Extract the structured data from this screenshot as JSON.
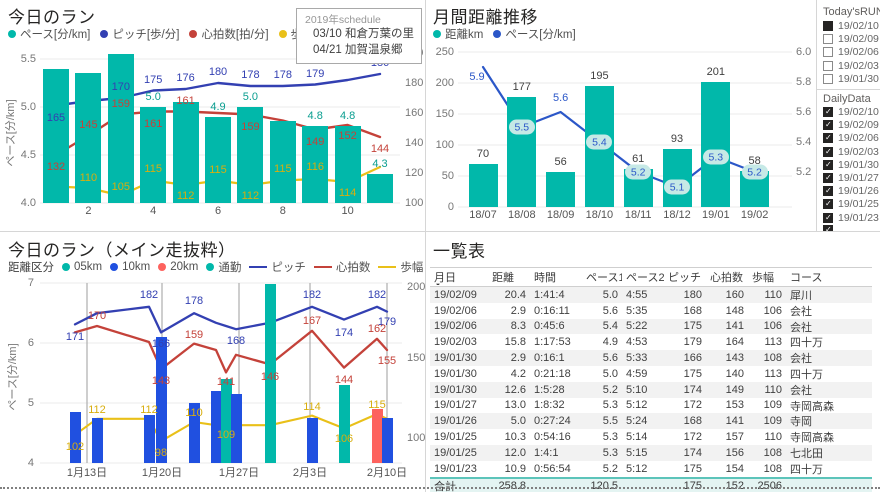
{
  "colors": {
    "teal": "#01B8AA",
    "blue": "#2050E0",
    "salmon": "#FD625E",
    "pitch": "#3340B2",
    "heart": "#C4423A",
    "stride": "#E9C019",
    "pace_label": "#0A9E90",
    "dark_label": "#3C3C3C",
    "chip_bg": "#C6E9E6",
    "chip_text": "#2B57C8"
  },
  "panels": {
    "today_run": {
      "title": "今日のラン",
      "legend": [
        {
          "label": "ペース[分/km]",
          "color_key": "teal"
        },
        {
          "label": "ピッチ[歩/分]",
          "color_key": "pitch"
        },
        {
          "label": "心拍数[拍/分]",
          "color_key": "heart"
        },
        {
          "label": "歩幅[cm]",
          "color_key": "stride"
        }
      ],
      "y_left_title": "ペース[分/km]",
      "y_left_ticks": [
        "5.5",
        "5.0",
        "4.5",
        "4.0"
      ],
      "y_right_ticks": [
        "200",
        "180",
        "160",
        "140",
        "120",
        "100"
      ],
      "x_ticks": [
        "2",
        "4",
        "6",
        "8",
        "10"
      ],
      "schedule_box": {
        "title": "2019年schedule",
        "lines": [
          "03/10 和倉万葉の里",
          "04/21 加賀温泉郷"
        ]
      }
    },
    "monthly": {
      "title": "月間距離推移",
      "legend": [
        {
          "label": "距離km",
          "color_key": "teal"
        },
        {
          "label": "ペース[分/km]",
          "color_key": "chip_text"
        }
      ],
      "y_left_ticks": [
        "250",
        "200",
        "150",
        "100",
        "50",
        "0"
      ],
      "y_right_ticks": [
        "6.0",
        "5.8",
        "5.6",
        "5.4",
        "5.2"
      ]
    },
    "slicer_today": {
      "title": "Today'sRUN",
      "items": [
        {
          "label": "19/02/10",
          "state": "selected"
        },
        {
          "label": "19/02/09",
          "state": "unchecked"
        },
        {
          "label": "19/02/06",
          "state": "unchecked"
        },
        {
          "label": "19/02/03",
          "state": "unchecked"
        },
        {
          "label": "19/01/30",
          "state": "unchecked"
        }
      ]
    },
    "slicer_daily": {
      "title": "DailyData",
      "items": [
        {
          "label": "19/02/10",
          "state": "checked"
        },
        {
          "label": "19/02/09",
          "state": "checked"
        },
        {
          "label": "19/02/06",
          "state": "checked"
        },
        {
          "label": "19/02/03",
          "state": "checked"
        },
        {
          "label": "19/01/30",
          "state": "checked"
        },
        {
          "label": "19/01/27",
          "state": "checked"
        },
        {
          "label": "19/01/26",
          "state": "checked"
        },
        {
          "label": "19/01/25",
          "state": "checked"
        },
        {
          "label": "19/01/23",
          "state": "checked"
        },
        {
          "label": "",
          "state": "checked"
        }
      ]
    },
    "main_run": {
      "title": "今日のラン（メイン走抜粋）",
      "legend_title": "距離区分",
      "legend_dots": [
        {
          "label": "05km",
          "color_key": "teal"
        },
        {
          "label": "10km",
          "color_key": "blue"
        },
        {
          "label": "20km",
          "color_key": "salmon"
        },
        {
          "label": "通勤",
          "color_key": "teal"
        }
      ],
      "legend_lines": [
        {
          "label": "ピッチ",
          "color_key": "pitch"
        },
        {
          "label": "心拍数",
          "color_key": "heart"
        },
        {
          "label": "歩幅",
          "color_key": "stride"
        }
      ],
      "y_left_title": "ペース[分/km]",
      "y_left_ticks": [
        "7",
        "6",
        "5",
        "4"
      ],
      "y_right_ticks": [
        "200",
        "150",
        "100"
      ],
      "x_labels": [
        "1月13日",
        "1月20日",
        "1月27日",
        "2月3日",
        "2月10日"
      ]
    },
    "table": {
      "title": "一覧表",
      "sort_arrow": "▼",
      "columns": [
        "月日",
        "距離",
        "時間",
        "ペース1",
        "ペース2",
        "ピッチ",
        "心拍数",
        "歩幅",
        "コース"
      ],
      "rows": [
        [
          "19/02/09",
          "20.4",
          "1:41:4",
          "5.0",
          "4:55",
          "180",
          "160",
          "110",
          "犀川"
        ],
        [
          "19/02/06",
          "2.9",
          "0:16:11",
          "5.6",
          "5:35",
          "168",
          "148",
          "106",
          "会社"
        ],
        [
          "19/02/06",
          "8.3",
          "0:45:6",
          "5.4",
          "5:22",
          "175",
          "141",
          "106",
          "会社"
        ],
        [
          "19/02/03",
          "15.8",
          "1:17:53",
          "4.9",
          "4:53",
          "179",
          "164",
          "113",
          "四十万"
        ],
        [
          "19/01/30",
          "2.9",
          "0:16:1",
          "5.6",
          "5:33",
          "166",
          "143",
          "108",
          "会社"
        ],
        [
          "19/01/30",
          "4.2",
          "0:21:18",
          "5.0",
          "4:59",
          "175",
          "140",
          "113",
          "四十万"
        ],
        [
          "19/01/30",
          "12.6",
          "1:5:28",
          "5.2",
          "5:10",
          "174",
          "149",
          "110",
          "会社"
        ],
        [
          "19/01/27",
          "13.0",
          "1:8:32",
          "5.3",
          "5:12",
          "172",
          "153",
          "109",
          "寺岡高森"
        ],
        [
          "19/01/26",
          "5.0",
          "0:27:24",
          "5.5",
          "5:24",
          "168",
          "141",
          "109",
          "寺岡"
        ],
        [
          "19/01/25",
          "10.3",
          "0:54:16",
          "5.3",
          "5:14",
          "172",
          "157",
          "110",
          "寺岡高森"
        ],
        [
          "19/01/25",
          "12.0",
          "1:4:1",
          "5.3",
          "5:15",
          "174",
          "156",
          "108",
          "七北田"
        ],
        [
          "19/01/23",
          "10.9",
          "0:56:54",
          "5.2",
          "5:12",
          "175",
          "154",
          "108",
          "四十万"
        ]
      ],
      "total_row": [
        "合計",
        "258.8",
        "",
        "120.5",
        "",
        "175",
        "152",
        "2506",
        ""
      ]
    }
  },
  "chart_data": [
    {
      "type": "bar+line",
      "title": "今日のラン",
      "ylim_left": [
        4.0,
        5.5
      ],
      "ylim_right": [
        100,
        200
      ],
      "x_ticks_shown": [
        "2",
        "4",
        "6",
        "8",
        "10"
      ],
      "bars": {
        "name": "ペース[分/km]",
        "values": [
          5.4,
          5.35,
          5.55,
          5.0,
          5.05,
          4.9,
          5.0,
          4.85,
          4.8,
          4.8,
          4.3
        ],
        "labels": [
          null,
          null,
          null,
          "5.0",
          null,
          "4.9",
          "5.0",
          null,
          "4.8",
          "4.8",
          "4.3"
        ]
      },
      "series": [
        {
          "name": "ピッチ[歩/分]",
          "key": "pitch",
          "values": [
            165,
            168,
            170,
            175,
            176,
            180,
            178,
            178,
            179,
            182,
            186
          ],
          "labels": [
            "165",
            null,
            "170",
            "175",
            "176",
            "180",
            "178",
            "178",
            "179",
            null,
            "186"
          ]
        },
        {
          "name": "心拍数[拍/分]",
          "key": "heart",
          "values": [
            132,
            145,
            159,
            161,
            161,
            160,
            159,
            155,
            149,
            152,
            144
          ],
          "labels": [
            "132",
            "145",
            "159",
            "161",
            "161",
            null,
            "159",
            null,
            "149",
            "152",
            "144"
          ]
        },
        {
          "name": "歩幅[cm]",
          "key": "stride",
          "values": [
            111,
            110,
            105,
            115,
            112,
            115,
            112,
            115,
            116,
            114,
            124
          ],
          "labels": [
            null,
            "110",
            "105",
            "115",
            "112",
            "115",
            "112",
            "115",
            "116",
            "114",
            null
          ]
        }
      ]
    },
    {
      "type": "bar+line",
      "title": "月間距離推移",
      "categories": [
        "18/07",
        "18/08",
        "18/09",
        "18/10",
        "18/11",
        "18/12",
        "19/01",
        "19/02"
      ],
      "ylim_left": [
        0,
        250
      ],
      "ylim_right": [
        5.2,
        6.0
      ],
      "bars": {
        "name": "距離km",
        "values": [
          70,
          177,
          56,
          195,
          61,
          93,
          201,
          58
        ],
        "labels": [
          "70",
          "177",
          "56",
          "195",
          "61",
          "93",
          "201",
          "58"
        ]
      },
      "series": [
        {
          "name": "ペース[分/km]",
          "key": "pace",
          "values": [
            5.9,
            5.5,
            5.6,
            5.4,
            5.2,
            5.1,
            5.3,
            5.2
          ],
          "labels": [
            "5.9",
            "5.5",
            "5.6",
            "5.4",
            "5.2",
            "5.1",
            "5.3",
            "5.2"
          ],
          "chip": [
            false,
            true,
            false,
            true,
            true,
            true,
            true,
            true
          ]
        }
      ]
    },
    {
      "type": "bar+line",
      "title": "今日のラン（メイン走抜粋）",
      "x_axis_labels": [
        "1月13日",
        "1月20日",
        "1月27日",
        "2月3日",
        "2月10日"
      ],
      "ylim_left": [
        4,
        7
      ],
      "ylim_right": [
        100,
        200
      ],
      "bars": {
        "name": "ペース[分/km]",
        "category_names": [
          "05km",
          "10km",
          "20km",
          "通勤"
        ],
        "values": [
          4.85,
          4.75,
          4.8,
          6.1,
          5.0,
          5.2,
          5.4,
          5.15,
          6.98,
          4.75,
          5.3,
          4.9,
          4.75
        ],
        "colors": [
          "blue",
          "blue",
          "blue",
          "blue",
          "blue",
          "blue",
          "teal",
          "blue",
          "teal",
          "blue",
          "teal",
          "salmon",
          "blue"
        ],
        "labels": [
          null,
          null,
          null,
          null,
          null,
          null,
          null,
          null,
          null,
          null,
          null,
          null,
          null
        ]
      },
      "series": [
        {
          "name": "ピッチ",
          "key": "pitch",
          "values": [
            171,
            178,
            182,
            166,
            178,
            172,
            170,
            168,
            172,
            182,
            174,
            182,
            179
          ],
          "labels": [
            "171",
            null,
            "182",
            "166",
            "178",
            null,
            null,
            "168",
            null,
            "182",
            "174",
            "182",
            "179"
          ]
        },
        {
          "name": "心拍数",
          "key": "heart",
          "values": [
            166,
            170,
            160,
            143,
            159,
            155,
            141,
            152,
            146,
            167,
            144,
            162,
            155
          ],
          "labels": [
            null,
            "170",
            null,
            "143",
            "159",
            null,
            "141",
            null,
            "146",
            "167",
            "144",
            "162",
            "155"
          ]
        },
        {
          "name": "歩幅",
          "key": "stride",
          "values": [
            102,
            112,
            112,
            98,
            110,
            108,
            109,
            108,
            108,
            114,
            106,
            115,
            112
          ],
          "labels": [
            "102",
            "112",
            "112",
            "98",
            "110",
            null,
            "109",
            null,
            null,
            "114",
            "106",
            "115",
            null
          ]
        }
      ]
    }
  ]
}
